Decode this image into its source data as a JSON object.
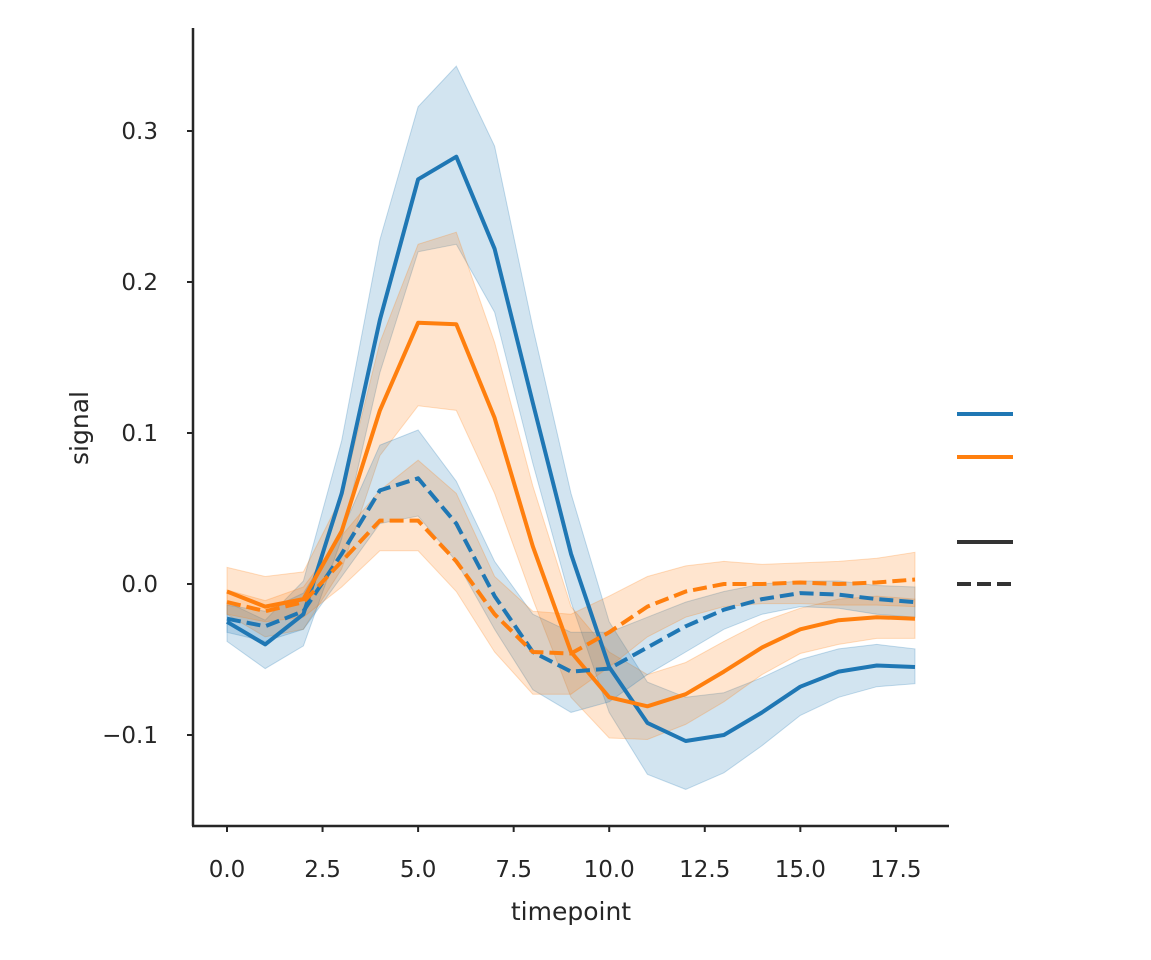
{
  "chart_data": {
    "type": "line",
    "title": "",
    "xlabel": "timepoint",
    "ylabel": "signal",
    "xlim": [
      -1.0,
      19.0
    ],
    "ylim": [
      -0.16,
      0.37
    ],
    "x_ticks": [
      "0.0",
      "2.5",
      "5.0",
      "7.5",
      "10.0",
      "12.5",
      "15.0",
      "17.5"
    ],
    "y_ticks": [
      "−0.1",
      "0.0",
      "0.1",
      "0.2",
      "0.3"
    ],
    "x_tick_values": [
      0,
      2.5,
      5,
      7.5,
      10,
      12.5,
      15,
      17.5
    ],
    "y_tick_values": [
      -0.1,
      0,
      0.1,
      0.2,
      0.3
    ],
    "grid": false,
    "legend_position": "right",
    "x": [
      0,
      1,
      2,
      3,
      4,
      5,
      6,
      7,
      8,
      9,
      10,
      11,
      12,
      13,
      14,
      15,
      16,
      17,
      18
    ],
    "series": [
      {
        "color": "#1f77b4",
        "dash": "solid",
        "values": [
          -0.025,
          -0.04,
          -0.02,
          0.06,
          0.175,
          0.268,
          0.283,
          0.222,
          0.12,
          0.02,
          -0.055,
          -0.092,
          -0.104,
          -0.1,
          -0.085,
          -0.068,
          -0.058,
          -0.054,
          -0.055
        ],
        "ci_lower": [
          -0.038,
          -0.056,
          -0.041,
          0.03,
          0.14,
          0.22,
          0.225,
          0.18,
          0.08,
          -0.012,
          -0.085,
          -0.126,
          -0.136,
          -0.125,
          -0.107,
          -0.087,
          -0.075,
          -0.068,
          -0.066
        ],
        "ci_upper": [
          -0.012,
          -0.024,
          0.002,
          0.095,
          0.228,
          0.316,
          0.343,
          0.29,
          0.17,
          0.06,
          -0.025,
          -0.065,
          -0.075,
          -0.072,
          -0.062,
          -0.05,
          -0.043,
          -0.04,
          -0.043
        ]
      },
      {
        "color": "#ff7f0e",
        "dash": "solid",
        "values": [
          -0.005,
          -0.015,
          -0.01,
          0.035,
          0.115,
          0.173,
          0.172,
          0.11,
          0.025,
          -0.045,
          -0.075,
          -0.081,
          -0.073,
          -0.058,
          -0.042,
          -0.03,
          -0.024,
          -0.022,
          -0.023
        ],
        "ci_lower": [
          -0.02,
          -0.035,
          -0.03,
          0.01,
          0.085,
          0.118,
          0.115,
          0.06,
          -0.01,
          -0.075,
          -0.102,
          -0.103,
          -0.093,
          -0.078,
          -0.06,
          -0.046,
          -0.04,
          -0.036,
          -0.036
        ],
        "ci_upper": [
          0.011,
          0.005,
          0.008,
          0.058,
          0.16,
          0.225,
          0.233,
          0.16,
          0.065,
          -0.015,
          -0.045,
          -0.06,
          -0.052,
          -0.038,
          -0.025,
          -0.016,
          -0.01,
          -0.008,
          -0.01
        ]
      },
      {
        "color": "#1f77b4",
        "dash": "dashed",
        "values": [
          -0.023,
          -0.028,
          -0.018,
          0.02,
          0.062,
          0.07,
          0.04,
          -0.008,
          -0.045,
          -0.058,
          -0.056,
          -0.042,
          -0.028,
          -0.017,
          -0.01,
          -0.006,
          -0.007,
          -0.01,
          -0.012
        ],
        "ci_lower": [
          -0.032,
          -0.038,
          -0.03,
          0.005,
          0.04,
          0.045,
          0.015,
          -0.03,
          -0.07,
          -0.085,
          -0.078,
          -0.06,
          -0.045,
          -0.03,
          -0.02,
          -0.015,
          -0.016,
          -0.02,
          -0.022
        ],
        "ci_upper": [
          -0.014,
          -0.018,
          -0.006,
          0.035,
          0.092,
          0.102,
          0.068,
          0.015,
          -0.02,
          -0.032,
          -0.032,
          -0.022,
          -0.012,
          -0.005,
          0.0,
          0.002,
          0.002,
          -0.001,
          -0.002
        ]
      },
      {
        "color": "#ff7f0e",
        "dash": "dashed",
        "values": [
          -0.012,
          -0.018,
          -0.012,
          0.015,
          0.042,
          0.042,
          0.015,
          -0.02,
          -0.045,
          -0.046,
          -0.032,
          -0.015,
          -0.005,
          0.0,
          0.0,
          0.001,
          0.0,
          0.001,
          0.003
        ],
        "ci_lower": [
          -0.02,
          -0.025,
          -0.022,
          -0.002,
          0.022,
          0.022,
          -0.005,
          -0.045,
          -0.073,
          -0.073,
          -0.055,
          -0.035,
          -0.022,
          -0.015,
          -0.013,
          -0.013,
          -0.014,
          -0.014,
          -0.015
        ],
        "ci_upper": [
          -0.004,
          -0.011,
          -0.002,
          0.032,
          0.062,
          0.082,
          0.06,
          0.005,
          -0.018,
          -0.02,
          -0.008,
          0.005,
          0.012,
          0.015,
          0.013,
          0.014,
          0.015,
          0.017,
          0.021
        ]
      }
    ],
    "legend": {
      "hue_entries": [
        {
          "color": "#1f77b4",
          "dash": "solid"
        },
        {
          "color": "#ff7f0e",
          "dash": "solid"
        }
      ],
      "style_entries": [
        {
          "color": "#333333",
          "dash": "solid"
        },
        {
          "color": "#333333",
          "dash": "dashed"
        }
      ]
    }
  }
}
